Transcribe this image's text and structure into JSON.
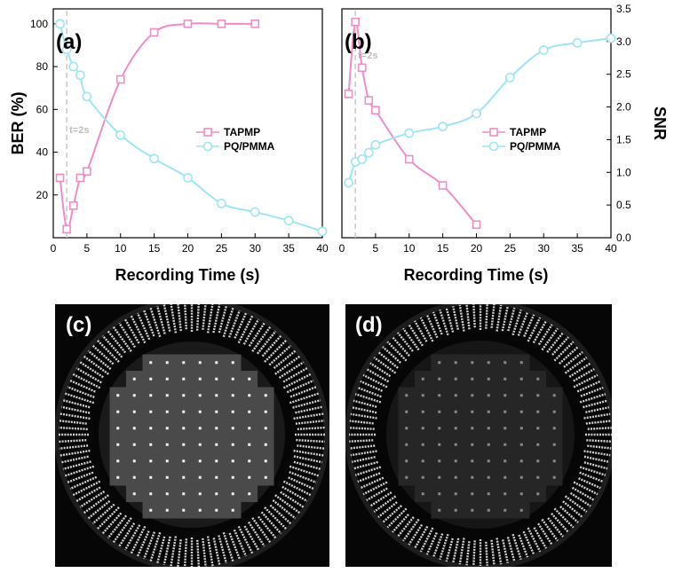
{
  "colors": {
    "tapmp": "#f08cc8",
    "pq": "#9fe4f5",
    "guide": "#c8c8c8"
  },
  "chart_data": [
    {
      "type": "line",
      "panel_label": "(a)",
      "xlabel": "Recording Time (s)",
      "ylabel": "BER (%)",
      "xlim": [
        0,
        40
      ],
      "ylim": [
        0,
        107
      ],
      "x_ticks": [
        0,
        5,
        10,
        15,
        20,
        25,
        30,
        35,
        40
      ],
      "y_ticks": [
        20,
        40,
        60,
        80,
        100
      ],
      "annotation": "t=2s",
      "annotation_x": 2,
      "legend_position": "center-right",
      "series": [
        {
          "name": "TAPMP",
          "marker": "square",
          "x": [
            1,
            2,
            3,
            4,
            5,
            10,
            15,
            20,
            25,
            30
          ],
          "y": [
            28,
            4,
            15,
            28,
            31,
            74,
            96,
            100,
            100,
            100
          ]
        },
        {
          "name": "PQ/PMMA",
          "marker": "circle",
          "x": [
            1,
            2,
            3,
            4,
            5,
            10,
            15,
            20,
            25,
            30,
            35,
            40
          ],
          "y": [
            100,
            88,
            80,
            76,
            66,
            48,
            37,
            28,
            16,
            12,
            8,
            3
          ]
        }
      ]
    },
    {
      "type": "line",
      "panel_label": "(b)",
      "xlabel": "Recording Time (s)",
      "ylabel": "SNR",
      "xlim": [
        0,
        40
      ],
      "ylim": [
        0,
        3.5
      ],
      "x_ticks": [
        0,
        5,
        10,
        15,
        20,
        25,
        30,
        35,
        40
      ],
      "y_ticks": [
        0.0,
        0.5,
        1.0,
        1.5,
        2.0,
        2.5,
        3.0,
        3.5
      ],
      "annotation": "t=2s",
      "annotation_x": 2,
      "legend_position": "center-right",
      "series": [
        {
          "name": "TAPMP",
          "marker": "square",
          "x": [
            1,
            2,
            3,
            4,
            5,
            10,
            15,
            20
          ],
          "y": [
            2.2,
            3.3,
            2.6,
            2.1,
            1.95,
            1.2,
            0.8,
            0.2
          ]
        },
        {
          "name": "PQ/PMMA",
          "marker": "circle",
          "x": [
            1,
            2,
            3,
            4,
            5,
            10,
            15,
            20,
            25,
            30,
            35,
            40
          ],
          "y": [
            0.84,
            1.16,
            1.2,
            1.3,
            1.42,
            1.6,
            1.7,
            1.9,
            2.45,
            2.87,
            2.98,
            3.05
          ]
        }
      ]
    }
  ],
  "images": [
    {
      "panel_label": "(c)",
      "pattern": "block-grid"
    },
    {
      "panel_label": "(d)",
      "pattern": "faint-grid"
    }
  ]
}
